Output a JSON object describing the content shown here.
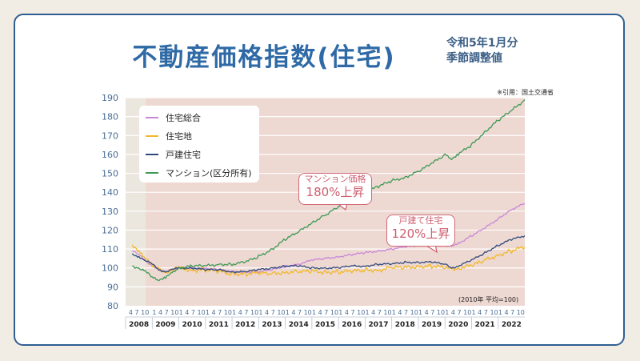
{
  "header": {
    "title": "不動産価格指数(住宅)",
    "subtitle_line1": "令和5年1月分",
    "subtitle_line2": "季節調整値",
    "source": "※引用：国土交通省"
  },
  "note": "(2010年 平均=100)",
  "callouts": {
    "mansion_line1": "マンション価格",
    "mansion_line2": "180%上昇",
    "house_line1": "戸建て住宅",
    "house_line2": "120%上昇"
  },
  "colors": {
    "background": "#f1ede4",
    "border": "#2f5f92",
    "title": "#2f6aa6",
    "plot_bg": "#eed8d2",
    "plot_bg_2008": "#ebe7df",
    "callout": "#cf5e6f"
  },
  "chart_data": {
    "type": "line",
    "title": "",
    "xlabel": "",
    "ylabel": "",
    "ylim": [
      80,
      190
    ],
    "yticks": [
      80,
      90,
      100,
      110,
      120,
      130,
      140,
      150,
      160,
      170,
      180,
      190
    ],
    "grid": true,
    "legend_position": "top-left",
    "years": [
      "2008",
      "2009",
      "2010",
      "2011",
      "2012",
      "2013",
      "2014",
      "2015",
      "2016",
      "2017",
      "2018",
      "2019",
      "2020",
      "2021",
      "2022"
    ],
    "quarter_months": [
      "4",
      "7",
      "10"
    ],
    "year_quarter_months": [
      "1",
      "4",
      "7",
      "10"
    ],
    "x": [
      2008.25,
      2008.5,
      2008.75,
      2009.0,
      2009.25,
      2009.5,
      2009.75,
      2010.0,
      2010.5,
      2011.0,
      2011.5,
      2012.0,
      2012.5,
      2013.0,
      2013.5,
      2014.0,
      2014.5,
      2015.0,
      2015.5,
      2016.0,
      2016.5,
      2017.0,
      2017.5,
      2018.0,
      2018.5,
      2019.0,
      2019.5,
      2020.0,
      2020.25,
      2020.5,
      2021.0,
      2021.5,
      2022.0,
      2022.5,
      2023.0
    ],
    "series": [
      {
        "name": "住宅総合",
        "color": "#c886d8",
        "values": [
          109,
          107,
          104,
          101,
          99,
          98,
          99,
          100,
          100,
          100,
          99,
          98,
          98,
          98,
          99,
          101,
          102,
          104,
          105,
          106,
          107,
          108,
          109,
          110,
          111,
          112,
          113,
          112,
          111,
          113,
          117,
          121,
          126,
          131,
          134
        ]
      },
      {
        "name": "住宅地",
        "color": "#f0b92a",
        "values": [
          111,
          109,
          106,
          101,
          99,
          98,
          99,
          100,
          99,
          99,
          98,
          97,
          97,
          97,
          97,
          98,
          98,
          98,
          98,
          98,
          98,
          99,
          99,
          100,
          100,
          101,
          101,
          100,
          99,
          100,
          101,
          104,
          107,
          109,
          111
        ]
      },
      {
        "name": "戸建住宅",
        "color": "#2f4a7a",
        "values": [
          107,
          106,
          104,
          102,
          99,
          98,
          99,
          100,
          100,
          99,
          99,
          98,
          98,
          99,
          100,
          101,
          101,
          100,
          100,
          100,
          101,
          101,
          102,
          102,
          103,
          103,
          103,
          102,
          100,
          101,
          104,
          108,
          112,
          115,
          117
        ]
      },
      {
        "name": "マンション(区分所有)",
        "color": "#3e9a56",
        "values": [
          101,
          100,
          98,
          95,
          94,
          95,
          97,
          100,
          101,
          101,
          102,
          102,
          103,
          106,
          110,
          115,
          119,
          124,
          128,
          132,
          136,
          140,
          143,
          146,
          148,
          151,
          155,
          160,
          158,
          160,
          165,
          172,
          178,
          183,
          189
        ]
      }
    ]
  }
}
